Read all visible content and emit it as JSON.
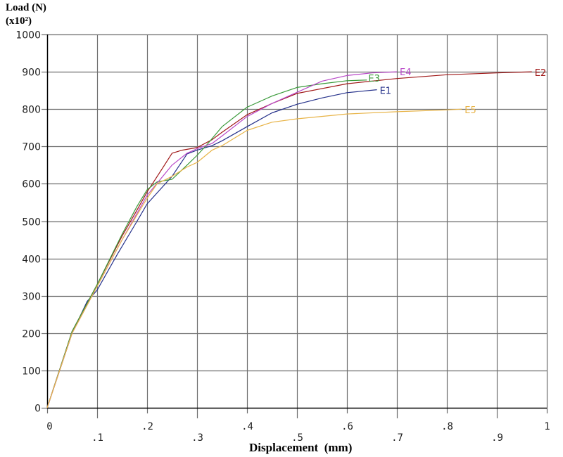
{
  "chart_data": {
    "type": "line",
    "title": "",
    "ylabel_line1": "Load (N)",
    "ylabel_line2": "(x10²)",
    "xlabel": "Displacement  (mm)",
    "xlim": [
      0,
      1
    ],
    "ylim": [
      0,
      1000
    ],
    "grid": true,
    "legend_position": "inline-end-labels",
    "x_ticks": [
      "0",
      ".1",
      ".2",
      ".3",
      ".4",
      ".5",
      ".6",
      ".7",
      ".8",
      ".9",
      "1"
    ],
    "y_ticks": [
      "0",
      "100",
      "200",
      "300",
      "400",
      "500",
      "600",
      "700",
      "800",
      "900",
      "1000"
    ],
    "series": [
      {
        "name": "E1",
        "color": "#24308a",
        "x": [
          0,
          0.05,
          0.08,
          0.1,
          0.14,
          0.18,
          0.2,
          0.25,
          0.28,
          0.3,
          0.33,
          0.35,
          0.4,
          0.45,
          0.5,
          0.55,
          0.6,
          0.66
        ],
        "y": [
          0,
          200,
          285,
          315,
          410,
          500,
          546,
          620,
          680,
          690,
          702,
          715,
          753,
          790,
          813,
          830,
          844,
          852
        ]
      },
      {
        "name": "E2",
        "color": "#a01818",
        "x": [
          0,
          0.05,
          0.1,
          0.15,
          0.18,
          0.2,
          0.23,
          0.25,
          0.27,
          0.3,
          0.33,
          0.35,
          0.4,
          0.45,
          0.5,
          0.6,
          0.7,
          0.8,
          0.9,
          0.97
        ],
        "y": [
          0,
          205,
          330,
          460,
          530,
          578,
          640,
          682,
          690,
          697,
          718,
          738,
          785,
          815,
          842,
          868,
          882,
          892,
          897,
          900
        ]
      },
      {
        "name": "E3",
        "color": "#3a9a3a",
        "x": [
          0,
          0.05,
          0.1,
          0.15,
          0.18,
          0.2,
          0.22,
          0.25,
          0.28,
          0.3,
          0.32,
          0.35,
          0.4,
          0.45,
          0.5,
          0.55,
          0.6,
          0.64
        ],
        "y": [
          0,
          205,
          330,
          465,
          540,
          584,
          605,
          612,
          650,
          676,
          705,
          753,
          805,
          835,
          858,
          868,
          876,
          878
        ]
      },
      {
        "name": "E4",
        "color": "#b848c8",
        "x": [
          0,
          0.05,
          0.1,
          0.15,
          0.2,
          0.25,
          0.28,
          0.3,
          0.33,
          0.35,
          0.4,
          0.45,
          0.5,
          0.55,
          0.6,
          0.65,
          0.7
        ],
        "y": [
          0,
          200,
          325,
          450,
          569,
          650,
          682,
          694,
          708,
          728,
          780,
          815,
          845,
          875,
          890,
          897,
          900
        ]
      },
      {
        "name": "E5",
        "color": "#e8b448",
        "x": [
          0,
          0.05,
          0.1,
          0.15,
          0.2,
          0.22,
          0.25,
          0.28,
          0.3,
          0.33,
          0.35,
          0.4,
          0.45,
          0.5,
          0.6,
          0.7,
          0.8,
          0.83
        ],
        "y": [
          0,
          200,
          325,
          450,
          561,
          600,
          620,
          645,
          657,
          690,
          702,
          743,
          765,
          774,
          787,
          793,
          798,
          800
        ]
      }
    ]
  },
  "colors": {
    "grid": "#6e6e6e",
    "axis": "#000000",
    "background": "#ffffff"
  }
}
